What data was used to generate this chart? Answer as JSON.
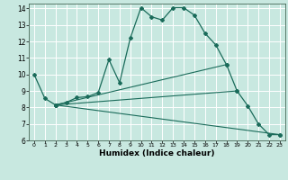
{
  "xlabel": "Humidex (Indice chaleur)",
  "xlim": [
    -0.5,
    23.5
  ],
  "ylim": [
    6,
    14.3
  ],
  "yticks": [
    6,
    7,
    8,
    9,
    10,
    11,
    12,
    13,
    14
  ],
  "xticks": [
    0,
    1,
    2,
    3,
    4,
    5,
    6,
    7,
    8,
    9,
    10,
    11,
    12,
    13,
    14,
    15,
    16,
    17,
    18,
    19,
    20,
    21,
    22,
    23
  ],
  "bg_color": "#c8e8e0",
  "grid_color": "#ffffff",
  "line_color": "#1a6b5a",
  "main_line": {
    "x": [
      0,
      1,
      2,
      3,
      4,
      5,
      6,
      7,
      8,
      9,
      10,
      11,
      12,
      13,
      14,
      15,
      16,
      17,
      18,
      19,
      20,
      21,
      22,
      23
    ],
    "y": [
      10.0,
      8.55,
      8.15,
      8.3,
      8.6,
      8.65,
      8.9,
      10.9,
      9.5,
      12.2,
      14.05,
      13.5,
      13.3,
      14.05,
      14.05,
      13.6,
      12.5,
      11.8,
      10.6,
      9.0,
      8.1,
      7.0,
      6.35,
      6.35
    ]
  },
  "straight_lines": [
    {
      "x": [
        2,
        18
      ],
      "y": [
        8.15,
        10.6
      ]
    },
    {
      "x": [
        2,
        19
      ],
      "y": [
        8.15,
        9.0
      ]
    },
    {
      "x": [
        2,
        23
      ],
      "y": [
        8.15,
        6.35
      ]
    }
  ]
}
